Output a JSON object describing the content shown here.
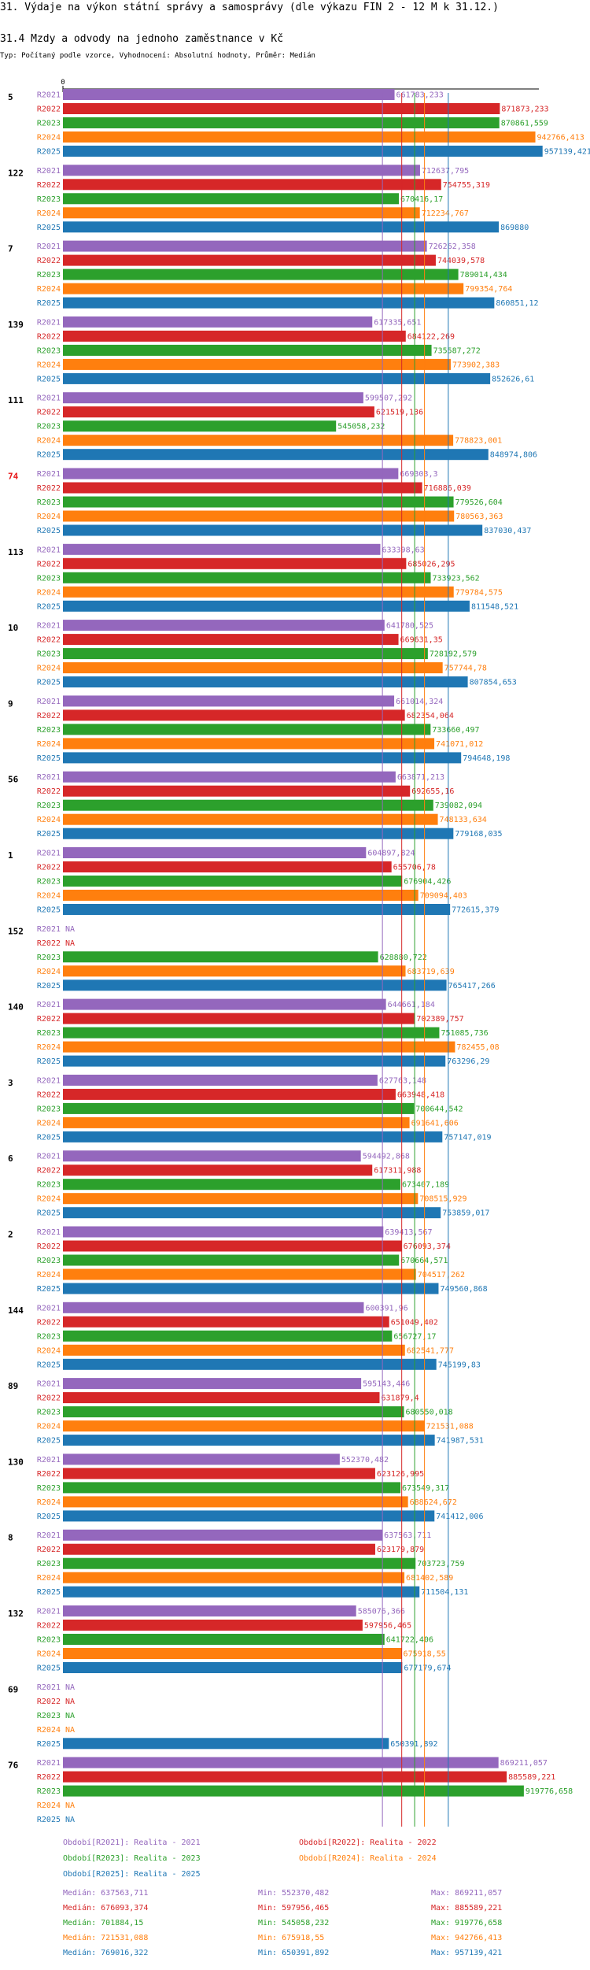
{
  "header": {
    "title": "31. Výdaje na výkon státní správy a samosprávy (dle výkazu FIN 2 - 12 M k 31.12.)",
    "subtitle": "31.4 Mzdy a odvody na jednoho zaměstnance v Kč",
    "note": "Typ: Počítaný podle vzorce, Vyhodnocení: Absolutní hodnoty, Průměr: Medián"
  },
  "chart_data": {
    "type": "bar",
    "orientation": "horizontal",
    "axis_zero_label": "0",
    "xlim": [
      0,
      957139.421
    ],
    "series": [
      {
        "key": "R2021",
        "name": "Realita - 2021",
        "color": "#9467bd"
      },
      {
        "key": "R2022",
        "name": "Realita - 2022",
        "color": "#d62728"
      },
      {
        "key": "R2023",
        "name": "Realita - 2023",
        "color": "#2ca02c"
      },
      {
        "key": "R2024",
        "name": "Realita - 2024",
        "color": "#ff7f0e"
      },
      {
        "key": "R2025",
        "name": "Realita - 2025",
        "color": "#1f77b4"
      }
    ],
    "na_label": "NA",
    "groups": [
      {
        "id": "5",
        "highlight": false,
        "values": [
          661783.233,
          871873.233,
          870861.559,
          942766.413,
          957139.421
        ],
        "labels": [
          "661783,233",
          "871873,233",
          "870861,559",
          "942766,413",
          "957139,421"
        ]
      },
      {
        "id": "122",
        "highlight": false,
        "values": [
          712637.795,
          754755.319,
          670416.17,
          712234.767,
          869880
        ],
        "labels": [
          "712637,795",
          "754755,319",
          "670416,17",
          "712234,767",
          "869880"
        ]
      },
      {
        "id": "7",
        "highlight": false,
        "values": [
          726262.358,
          744039.578,
          789014.434,
          799354.764,
          860851.12
        ],
        "labels": [
          "726262,358",
          "744039,578",
          "789014,434",
          "799354,764",
          "860851,12"
        ]
      },
      {
        "id": "139",
        "highlight": false,
        "values": [
          617335.651,
          684122.269,
          735587.272,
          773902.383,
          852626.61
        ],
        "labels": [
          "617335,651",
          "684122,269",
          "735587,272",
          "773902,383",
          "852626,61"
        ]
      },
      {
        "id": "111",
        "highlight": false,
        "values": [
          599507.292,
          621519.136,
          545058.232,
          778823.001,
          848974.806
        ],
        "labels": [
          "599507,292",
          "621519,136",
          "545058,232",
          "778823,001",
          "848974,806"
        ]
      },
      {
        "id": "74",
        "highlight": true,
        "values": [
          669303.3,
          716886.039,
          779526.604,
          780563.363,
          837030.437
        ],
        "labels": [
          "669303,3",
          "716886,039",
          "779526,604",
          "780563,363",
          "837030,437"
        ]
      },
      {
        "id": "113",
        "highlight": false,
        "values": [
          633398.63,
          685026.295,
          733923.562,
          779784.575,
          811548.521
        ],
        "labels": [
          "633398,63",
          "685026,295",
          "733923,562",
          "779784,575",
          "811548,521"
        ]
      },
      {
        "id": "10",
        "highlight": false,
        "values": [
          641780.525,
          669631.35,
          728192.579,
          757744.78,
          807854.653
        ],
        "labels": [
          "641780,525",
          "669631,35",
          "728192,579",
          "757744,78",
          "807854,653"
        ]
      },
      {
        "id": "9",
        "highlight": false,
        "values": [
          661014.324,
          682354.064,
          733660.497,
          741071.012,
          794648.198
        ],
        "labels": [
          "661014,324",
          "682354,064",
          "733660,497",
          "741071,012",
          "794648,198"
        ]
      },
      {
        "id": "56",
        "highlight": false,
        "values": [
          663871.213,
          692655.16,
          739082.094,
          748133.634,
          779168.035
        ],
        "labels": [
          "663871,213",
          "692655,16",
          "739082,094",
          "748133,634",
          "779168,035"
        ]
      },
      {
        "id": "1",
        "highlight": false,
        "values": [
          604897.824,
          655706.78,
          676904.426,
          709094.403,
          772615.379
        ],
        "labels": [
          "604897,824",
          "655706,78",
          "676904,426",
          "709094,403",
          "772615,379"
        ]
      },
      {
        "id": "152",
        "highlight": false,
        "values": [
          null,
          null,
          628880.722,
          683719.639,
          765417.266
        ],
        "labels": [
          null,
          null,
          "628880,722",
          "683719,639",
          "765417,266"
        ]
      },
      {
        "id": "140",
        "highlight": false,
        "values": [
          644661.184,
          702389.757,
          751085.736,
          782455.08,
          763296.29
        ],
        "labels": [
          "644661,184",
          "702389,757",
          "751085,736",
          "782455,08",
          "763296,29"
        ]
      },
      {
        "id": "3",
        "highlight": false,
        "values": [
          627763.148,
          663948.418,
          700644.542,
          691641.606,
          757147.019
        ],
        "labels": [
          "627763,148",
          "663948,418",
          "700644,542",
          "691641,606",
          "757147,019"
        ]
      },
      {
        "id": "6",
        "highlight": false,
        "values": [
          594492.868,
          617311.988,
          673407.189,
          708515.929,
          753859.017
        ],
        "labels": [
          "594492,868",
          "617311,988",
          "673407,189",
          "708515,929",
          "753859,017"
        ]
      },
      {
        "id": "2",
        "highlight": false,
        "values": [
          639413.567,
          676093.374,
          670664.571,
          704517.262,
          749560.868
        ],
        "labels": [
          "639413,567",
          "676093,374",
          "670664,571",
          "704517,262",
          "749560,868"
        ]
      },
      {
        "id": "144",
        "highlight": false,
        "values": [
          600391.96,
          651049.402,
          656727.17,
          682541.777,
          745199.83
        ],
        "labels": [
          "600391,96",
          "651049,402",
          "656727,17",
          "682541,777",
          "745199,83"
        ]
      },
      {
        "id": "89",
        "highlight": false,
        "values": [
          595143.446,
          631879.4,
          680550.018,
          721531.088,
          741987.531
        ],
        "labels": [
          "595143,446",
          "631879,4",
          "680550,018",
          "721531,088",
          "741987,531"
        ]
      },
      {
        "id": "130",
        "highlight": false,
        "values": [
          552370.482,
          623126.995,
          673549.317,
          688624.672,
          741412.006
        ],
        "labels": [
          "552370,482",
          "623126,995",
          "673549,317",
          "688624,672",
          "741412,006"
        ]
      },
      {
        "id": "8",
        "highlight": false,
        "values": [
          637563.711,
          623179.879,
          703723.759,
          681402.589,
          711504.131
        ],
        "labels": [
          "637563,711",
          "623179,879",
          "703723,759",
          "681402,589",
          "711504,131"
        ]
      },
      {
        "id": "132",
        "highlight": false,
        "values": [
          585076.366,
          597956.465,
          641722.406,
          675918.55,
          677179.674
        ],
        "labels": [
          "585076,366",
          "597956,465",
          "641722,406",
          "675918,55",
          "677179,674"
        ]
      },
      {
        "id": "69",
        "highlight": false,
        "values": [
          null,
          null,
          null,
          null,
          650391.892
        ],
        "labels": [
          null,
          null,
          null,
          null,
          "650391,892"
        ]
      },
      {
        "id": "76",
        "highlight": false,
        "values": [
          869211.057,
          885589.221,
          919776.658,
          null,
          null
        ],
        "labels": [
          "869211,057",
          "885589,221",
          "919776,658",
          null,
          null
        ]
      }
    ],
    "medians": [
      637563.711,
      676093.374,
      701884.15,
      721531.088,
      769016.322
    ]
  },
  "legend": {
    "periods": [
      "Období[R2021]: Realita - 2021",
      "Období[R2022]: Realita - 2022",
      "Období[R2023]: Realita - 2023",
      "Období[R2024]: Realita - 2024",
      "Období[R2025]: Realita - 2025"
    ],
    "stats": [
      {
        "median": "Medián: 637563,711",
        "min": "Min: 552370,482",
        "max": "Max: 869211,057"
      },
      {
        "median": "Medián: 676093,374",
        "min": "Min: 597956,465",
        "max": "Max: 885589,221"
      },
      {
        "median": "Medián: 701884,15",
        "min": "Min: 545058,232",
        "max": "Max: 919776,658"
      },
      {
        "median": "Medián: 721531,088",
        "min": "Min: 675918,55",
        "max": "Max: 942766,413"
      },
      {
        "median": "Medián: 769016,322",
        "min": "Min: 650391,892",
        "max": "Max: 957139,421"
      }
    ]
  }
}
